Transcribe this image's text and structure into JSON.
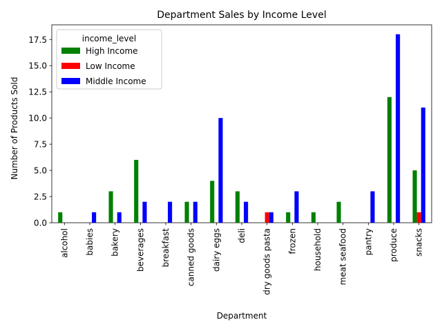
{
  "chart_data": {
    "type": "bar",
    "title": "Department Sales by Income Level",
    "xlabel": "Department",
    "ylabel": "Number of Products Sold",
    "categories": [
      "alcohol",
      "babies",
      "bakery",
      "beverages",
      "breakfast",
      "canned goods",
      "dairy eggs",
      "deli",
      "dry goods pasta",
      "frozen",
      "household",
      "meat seafood",
      "pantry",
      "produce",
      "snacks"
    ],
    "series": [
      {
        "name": "High Income",
        "color": "#008000",
        "values": [
          1,
          0,
          3,
          6,
          0,
          2,
          4,
          3,
          0,
          1,
          1,
          2,
          0,
          12,
          5
        ]
      },
      {
        "name": "Low Income",
        "color": "#ff0000",
        "values": [
          0,
          0,
          0,
          0,
          0,
          0,
          0,
          0,
          1,
          0,
          0,
          0,
          0,
          0,
          1
        ]
      },
      {
        "name": "Middle Income",
        "color": "#0000ff",
        "values": [
          0,
          1,
          1,
          2,
          2,
          2,
          10,
          2,
          1,
          3,
          0,
          0,
          3,
          18,
          11
        ]
      }
    ],
    "ylim": [
      0,
      18.9
    ],
    "yticks": [
      "0.0",
      "2.5",
      "5.0",
      "7.5",
      "10.0",
      "12.5",
      "15.0",
      "17.5"
    ],
    "legend": {
      "title": "income_level",
      "position": "top-left"
    },
    "grid": false
  }
}
